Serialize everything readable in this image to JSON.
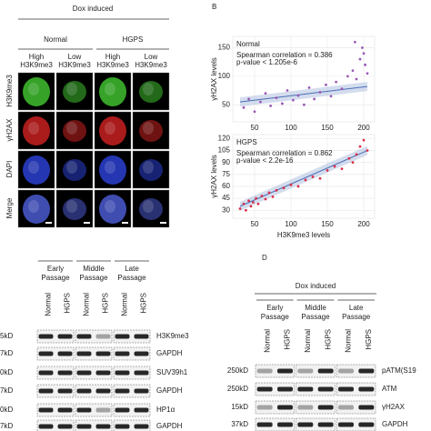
{
  "panel_labels": {
    "b": "B",
    "d": "D"
  },
  "panel_a": {
    "header": "Dox induced",
    "groups": [
      "Normal",
      "HGPS"
    ],
    "columns": [
      [
        "High",
        "H3K9me3"
      ],
      [
        "Low",
        "H3K9me3"
      ],
      [
        "High",
        "H3K9me3"
      ],
      [
        "Low",
        "H3K9me3"
      ]
    ],
    "rows": [
      "H3K9me3",
      "γH2AX",
      "DAPI",
      "Merge"
    ],
    "row_colors": [
      "#2a9d2a",
      "#c0392b",
      "#2c3fb5",
      "#222222"
    ]
  },
  "chart_data": [
    {
      "type": "scatter",
      "title": "Normal",
      "annotations": [
        "Spearman correlation = 0.386",
        "p-value < 1.205e-6"
      ],
      "y_label": "γH2AX levels",
      "color": "#9b59b6",
      "xlim": [
        20,
        215
      ],
      "ylim": [
        20,
        170
      ],
      "xticks": [
        50,
        100,
        150,
        200
      ],
      "yticks": [
        50,
        100,
        150
      ],
      "x": [
        35,
        42,
        50,
        58,
        65,
        72,
        80,
        88,
        95,
        103,
        110,
        118,
        125,
        132,
        140,
        148,
        155,
        162,
        170,
        178,
        185,
        190,
        195,
        198,
        202,
        205,
        200,
        188
      ],
      "y": [
        45,
        60,
        38,
        55,
        70,
        48,
        62,
        52,
        75,
        58,
        66,
        50,
        80,
        60,
        72,
        85,
        65,
        90,
        78,
        100,
        110,
        95,
        130,
        150,
        120,
        105,
        140,
        160
      ],
      "trend": {
        "x": [
          30,
          205
        ],
        "y": [
          55,
          82
        ]
      }
    },
    {
      "type": "scatter",
      "title": "HGPS",
      "annotations": [
        "Spearman correlation = 0.862",
        "p-value < 2.2e-16"
      ],
      "y_label": "γH2AX levels",
      "x_label": "H3K9me3 levels",
      "color": "#d9304a",
      "xlim": [
        20,
        215
      ],
      "ylim": [
        20,
        125
      ],
      "xticks": [
        50,
        100,
        150,
        200
      ],
      "yticks": [
        30,
        45,
        60,
        75,
        90,
        105,
        120
      ],
      "x": [
        30,
        35,
        38,
        42,
        45,
        48,
        52,
        55,
        60,
        65,
        70,
        75,
        80,
        90,
        100,
        110,
        120,
        130,
        140,
        150,
        160,
        170,
        180,
        190,
        195,
        200,
        205,
        185
      ],
      "y": [
        32,
        38,
        30,
        42,
        35,
        40,
        45,
        38,
        48,
        44,
        52,
        47,
        55,
        58,
        62,
        60,
        68,
        72,
        70,
        80,
        85,
        82,
        95,
        100,
        110,
        118,
        105,
        90
      ],
      "trend": {
        "x": [
          30,
          205
        ],
        "y": [
          35,
          105
        ]
      }
    }
  ],
  "panel_c": {
    "passages": [
      [
        "Early",
        "Passage"
      ],
      [
        "Middle",
        "Passage"
      ],
      [
        "Late",
        "Passage"
      ]
    ],
    "lanes": [
      "Normal",
      "HGPS",
      "Normal",
      "HGPS",
      "Normal",
      "HGPS"
    ],
    "kd": [
      "5kD",
      "7kD",
      "0kD",
      "7kD",
      "0kD",
      "7kD"
    ],
    "proteins": [
      "H3K9me3",
      "GAPDH",
      "SUV39h1",
      "GAPDH",
      "HP1α",
      "GAPDH"
    ]
  },
  "panel_d": {
    "header": "Dox induced",
    "passages": [
      [
        "Early",
        "Passage"
      ],
      [
        "Middle",
        "Passage"
      ],
      [
        "Late",
        "Passage"
      ]
    ],
    "lanes": [
      "Normal",
      "HGPS",
      "Normal",
      "HGPS",
      "Normal",
      "HGPS"
    ],
    "kd": [
      "250kD",
      "250kD",
      "15kD",
      "37kD"
    ],
    "proteins": [
      "pATM(S19",
      "ATM",
      "γH2AX",
      "GAPDH"
    ]
  }
}
